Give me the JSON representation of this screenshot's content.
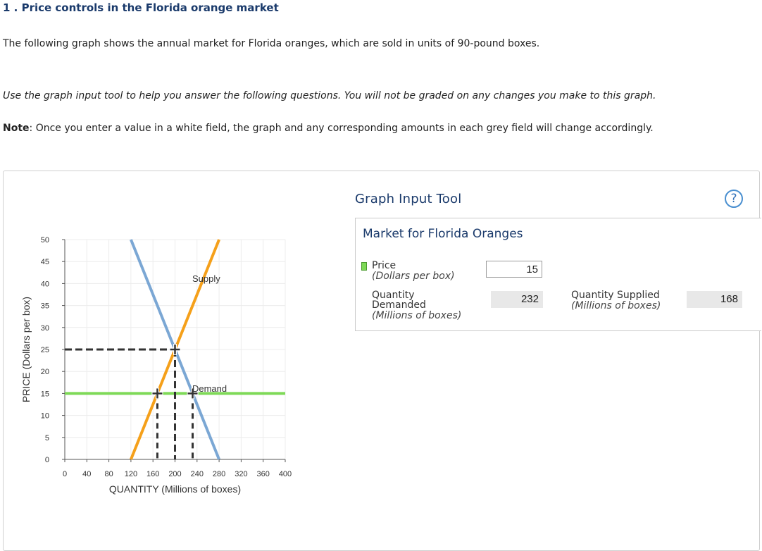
{
  "question": {
    "title": "1 . Price controls in the Florida orange market",
    "intro": "The following graph shows the annual market for Florida oranges, which are sold in units of 90-pound boxes.",
    "instructions": "Use the graph input tool to help you answer the following questions. You will not be graded on any changes you make to this graph.",
    "note_label": "Note",
    "note_text": ": Once you enter a value in a white field, the graph and any corresponding amounts in each grey field will change accordingly."
  },
  "tool": {
    "title": "Graph Input Tool",
    "help_icon": "question-circle-icon",
    "help_symbol": "?",
    "market_heading": "Market for Florida Oranges",
    "price_label": "Price",
    "price_unit": "(Dollars per box)",
    "price_value": "15",
    "qd_label_1": "Quantity",
    "qd_label_2": "Demanded",
    "qd_unit": "(Millions of boxes)",
    "qd_value": "232",
    "qs_label": "Quantity Supplied",
    "qs_unit": "(Millions of boxes)",
    "qs_value": "168",
    "price_line_color": "#7ed957"
  },
  "chart_data": {
    "type": "line",
    "xlabel": "QUANTITY (Millions of boxes)",
    "ylabel": "PRICE (Dollars per box)",
    "xlim": [
      0,
      400
    ],
    "ylim": [
      0,
      50
    ],
    "x_ticks": [
      0,
      40,
      80,
      120,
      160,
      200,
      240,
      280,
      320,
      360,
      400
    ],
    "y_ticks": [
      0,
      5,
      10,
      15,
      20,
      25,
      30,
      35,
      40,
      45,
      50
    ],
    "grid": true,
    "series": [
      {
        "name": "Supply",
        "color": "#f5a01a",
        "points": [
          [
            120,
            0
          ],
          [
            280,
            50
          ]
        ]
      },
      {
        "name": "Demand",
        "color": "#7ba7d4",
        "points": [
          [
            120,
            50
          ],
          [
            280,
            0
          ]
        ]
      },
      {
        "name": "Price",
        "color": "#7ed957",
        "points": [
          [
            0,
            15
          ],
          [
            400,
            15
          ]
        ]
      }
    ],
    "equilibrium": {
      "x": 200,
      "y": 25
    },
    "price_control": {
      "price": 15,
      "quantity_supplied": 168,
      "quantity_demanded": 232
    },
    "curve_labels": [
      {
        "text": "Supply",
        "x": 230,
        "y": 41
      },
      {
        "text": "Demand",
        "x": 230,
        "y": 16
      }
    ]
  }
}
